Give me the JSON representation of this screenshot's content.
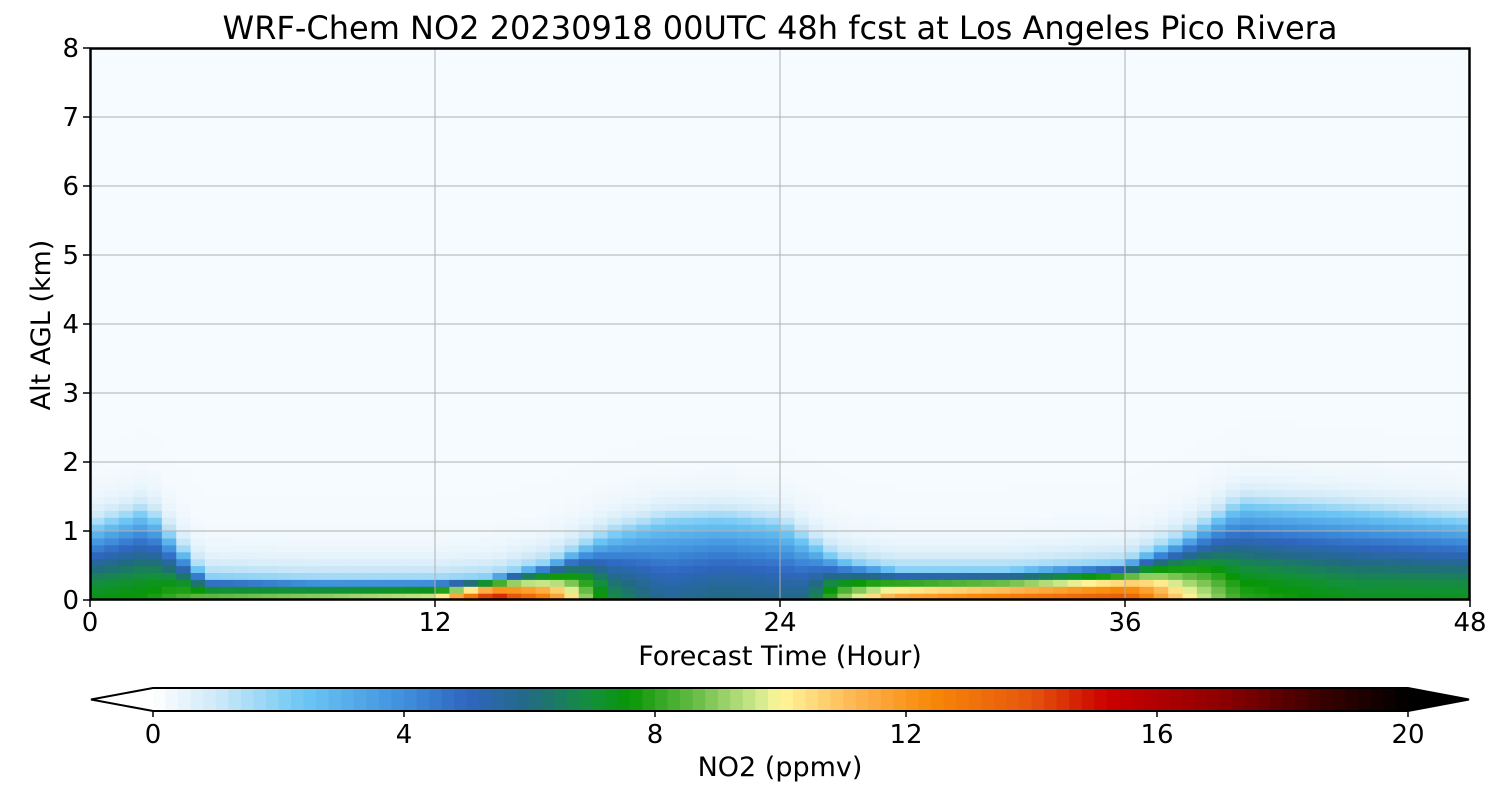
{
  "chart_data": {
    "type": "heatmap",
    "title": "WRF-Chem NO2  20230918 00UTC 48h fcst at Los Angeles Pico Rivera",
    "xlabel": "Forecast Time (Hour)",
    "ylabel": "Alt AGL (km)",
    "xlim": [
      0,
      48
    ],
    "ylim": [
      0,
      8
    ],
    "xticks": [
      "0",
      "12",
      "24",
      "36",
      "48"
    ],
    "yticks": [
      "0",
      "1",
      "2",
      "3",
      "4",
      "5",
      "6",
      "7",
      "8"
    ],
    "grid": true,
    "colorbar": {
      "label": "NO2  (ppmv)",
      "range": [
        0,
        20
      ],
      "ticks": [
        "0",
        "4",
        "8",
        "12",
        "16",
        "20"
      ],
      "extend": "both",
      "colormap_anchors": [
        {
          "value": 0,
          "color": "#ffffff"
        },
        {
          "value": 1,
          "color": "#cfe9f8"
        },
        {
          "value": 2.4,
          "color": "#6cc6f4"
        },
        {
          "value": 4,
          "color": "#3f8fdc"
        },
        {
          "value": 5,
          "color": "#2f66c0"
        },
        {
          "value": 6,
          "color": "#226a84"
        },
        {
          "value": 7,
          "color": "#13903a"
        },
        {
          "value": 7.6,
          "color": "#089606"
        },
        {
          "value": 8.6,
          "color": "#64ba43"
        },
        {
          "value": 9.6,
          "color": "#cbe88b"
        },
        {
          "value": 10,
          "color": "#fff69a"
        },
        {
          "value": 11.2,
          "color": "#fdb551"
        },
        {
          "value": 12.4,
          "color": "#f88808"
        },
        {
          "value": 14,
          "color": "#e6550d"
        },
        {
          "value": 15.2,
          "color": "#cc0000"
        },
        {
          "value": 17,
          "color": "#8f0000"
        },
        {
          "value": 18.6,
          "color": "#3a0000"
        },
        {
          "value": 20,
          "color": "#000000"
        }
      ]
    },
    "profile": {
      "hours": [
        0,
        2,
        4,
        8,
        12,
        14,
        16,
        17,
        18,
        20,
        22,
        24,
        25,
        26,
        28,
        32,
        36,
        38,
        40,
        44,
        48
      ],
      "surface_no2": [
        7.4,
        7.7,
        8.8,
        9.4,
        10.0,
        15.5,
        12.5,
        9.8,
        7.0,
        5.6,
        6.0,
        5.8,
        6.0,
        8.8,
        11.8,
        13.0,
        14.0,
        10.5,
        8.0,
        7.3,
        7.3
      ],
      "boundary_layer_height_km": [
        1.05,
        1.3,
        0.35,
        0.3,
        0.3,
        0.35,
        0.55,
        0.75,
        0.95,
        1.15,
        1.2,
        1.1,
        0.85,
        0.6,
        0.45,
        0.45,
        0.55,
        0.9,
        1.4,
        1.3,
        1.15
      ]
    }
  }
}
